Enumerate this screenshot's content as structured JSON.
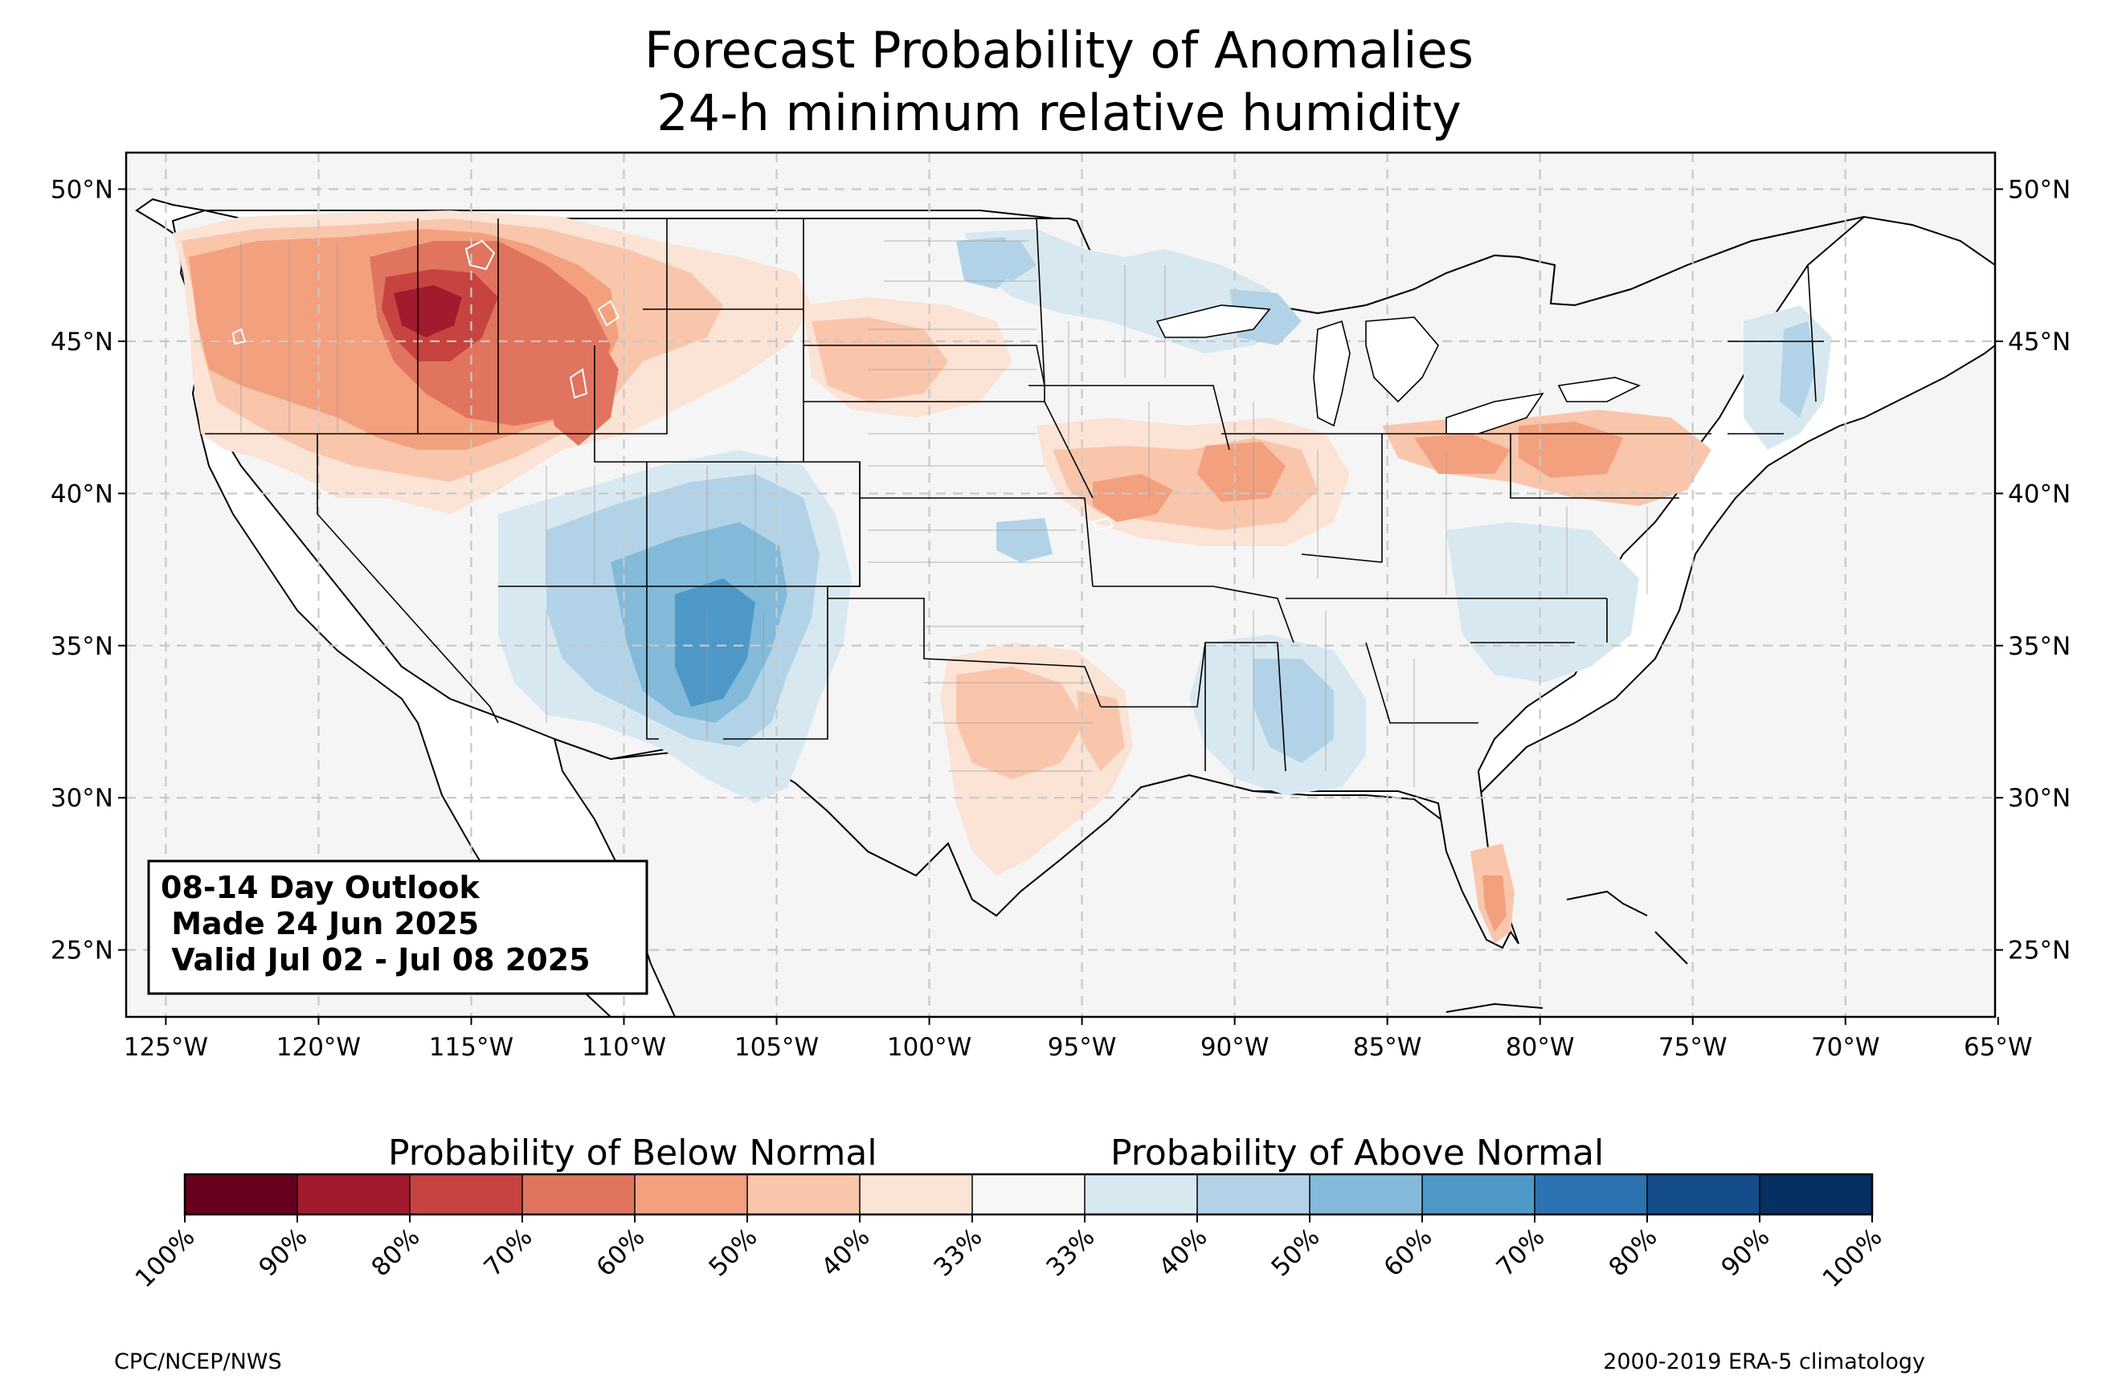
{
  "title": {
    "line1": "Forecast Probability of Anomalies",
    "line2": "24-h minimum relative humidity"
  },
  "outlook_box": {
    "line1": "08-14 Day Outlook",
    "line2": " Made 24 Jun 2025",
    "line3": " Valid Jul 02 - Jul 08 2025"
  },
  "axes": {
    "lon_ticks": [
      "125°W",
      "120°W",
      "115°W",
      "110°W",
      "105°W",
      "100°W",
      "95°W",
      "90°W",
      "85°W",
      "80°W",
      "75°W",
      "70°W",
      "65°W"
    ],
    "lat_ticks": [
      "25°N",
      "30°N",
      "35°N",
      "40°N",
      "45°N",
      "50°N"
    ],
    "lon_values": [
      -125,
      -120,
      -115,
      -110,
      -105,
      -100,
      -95,
      -90,
      -85,
      -80,
      -75,
      -70,
      -65
    ],
    "lat_values": [
      25,
      30,
      35,
      40,
      45,
      50
    ],
    "lon_range": [
      -126.3,
      -65.1
    ],
    "lat_range": [
      22.8,
      51.2
    ],
    "grid": "dashed"
  },
  "colorbar": {
    "below_label": "Probability of Below Normal",
    "above_label": "Probability of Above Normal",
    "tick_labels": [
      "100%",
      "90%",
      "80%",
      "70%",
      "60%",
      "50%",
      "40%",
      "33%",
      "33%",
      "40%",
      "50%",
      "60%",
      "70%",
      "80%",
      "90%",
      "100%"
    ],
    "colors": [
      "#67001f",
      "#a11a2d",
      "#c7433f",
      "#e0745e",
      "#f3a07f",
      "#f9c6ac",
      "#fbe3d5",
      "#f7f7f7",
      "#d8e8f1",
      "#b2d3e7",
      "#83bad9",
      "#4e98c7",
      "#2c73b1",
      "#154c8a",
      "#053061"
    ]
  },
  "footer": {
    "left": "CPC/NCEP/NWS",
    "right": "2000-2019 ERA-5 climatology"
  },
  "colors": {
    "land": "#f5f5f5",
    "state_border": "#8c8c8c",
    "country_border": "#000000",
    "grid": "#cccccc"
  },
  "anomaly_areas": [
    {
      "region": "Pacific Northwest",
      "category": "below",
      "level": "50-60%"
    },
    {
      "region": "Idaho / Montana",
      "category": "below",
      "level": "80-90%"
    },
    {
      "region": "Northern Rockies / Wyoming",
      "category": "below",
      "level": "60-70%"
    },
    {
      "region": "Northern Plains",
      "category": "below",
      "level": "40-50%"
    },
    {
      "region": "Missouri / Illinois",
      "category": "below",
      "level": "50-60%"
    },
    {
      "region": "Ohio / Pennsylvania",
      "category": "below",
      "level": "50-60%"
    },
    {
      "region": "Texas / Oklahoma",
      "category": "below",
      "level": "40-50%"
    },
    {
      "region": "Florida",
      "category": "below",
      "level": "50-60%"
    },
    {
      "region": "Southwest / New Mexico",
      "category": "above",
      "level": "60-70%"
    },
    {
      "region": "Upper Midwest",
      "category": "above",
      "level": "40-50%"
    },
    {
      "region": "Gulf Coast / Alabama",
      "category": "above",
      "level": "40-50%"
    },
    {
      "region": "New England",
      "category": "above",
      "level": "40-50%"
    },
    {
      "region": "North Dakota",
      "category": "above",
      "level": "40-50%"
    }
  ]
}
